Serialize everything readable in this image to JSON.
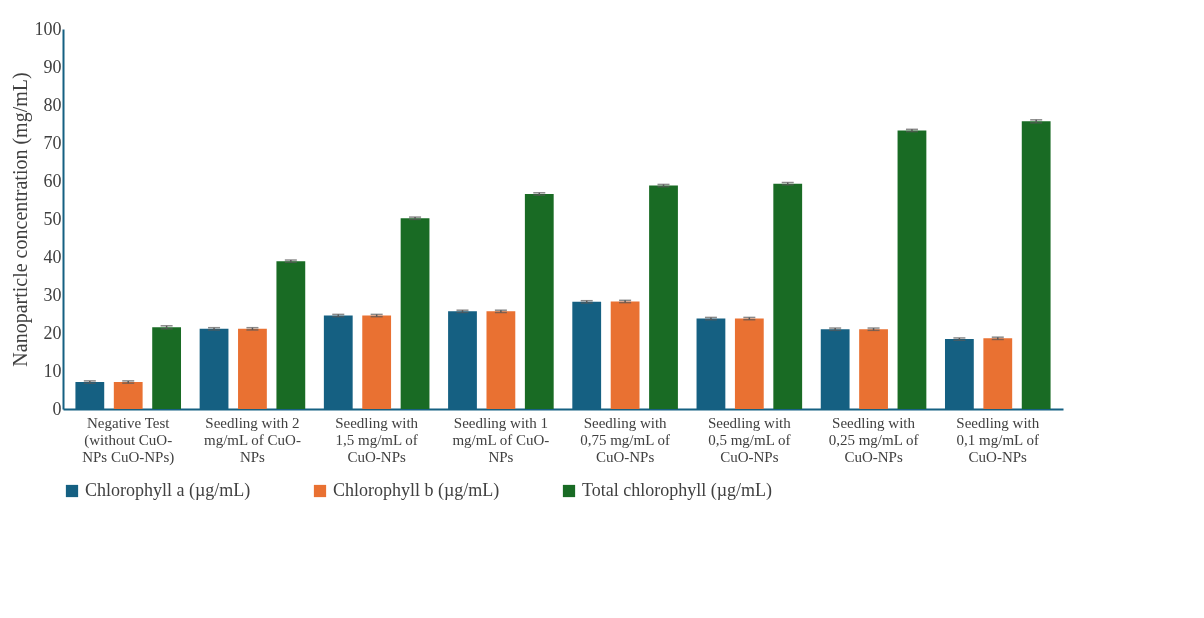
{
  "chart_data": {
    "type": "bar",
    "ylabel": "Nanoparticle concentration (mg/mL)",
    "categories": [
      "Negative Test (without CuO-NPs CuO-NPs)",
      "Seedling with 2 mg/mL of CuO-NPs",
      "Seedling with 1,5 mg/mL of CuO-NPs",
      "Seedling with 1 mg/mL of CuO-NPs",
      "Seedling with 0,75 mg/mL of CuO-NPs",
      "Seedling with 0,5 mg/mL of CuO-NPs",
      "Seedling with 0,25 mg/mL of CuO-NPs",
      "Seedling with 0,1 mg/mL of CuO-NPs"
    ],
    "series": [
      {
        "name": "Chlorophyll a (µg/mL)",
        "color": "#156082",
        "values": [
          7.1,
          21.1,
          24.6,
          25.7,
          28.2,
          23.8,
          21.0,
          18.4
        ],
        "errors": [
          0.3,
          0.3,
          0.3,
          0.3,
          0.3,
          0.3,
          0.3,
          0.3
        ]
      },
      {
        "name": "Chlorophyll b (µg/mL)",
        "color": "#e97132",
        "values": [
          7.1,
          21.1,
          24.6,
          25.7,
          28.3,
          23.8,
          21.0,
          18.6
        ],
        "errors": [
          0.3,
          0.3,
          0.3,
          0.3,
          0.3,
          0.3,
          0.3,
          0.3
        ]
      },
      {
        "name": "Total chlorophyll  (µg/mL)",
        "color": "#196b24",
        "values": [
          21.5,
          38.9,
          50.2,
          56.6,
          58.8,
          59.3,
          73.3,
          75.7
        ],
        "errors": [
          0.4,
          0.3,
          0.3,
          0.3,
          0.3,
          0.3,
          0.3,
          0.4
        ]
      }
    ],
    "ylim": [
      0,
      100
    ],
    "yticks": [
      0,
      10,
      20,
      30,
      40,
      50,
      60,
      70,
      80,
      90,
      100
    ],
    "grid": false,
    "legend": "bottom"
  }
}
